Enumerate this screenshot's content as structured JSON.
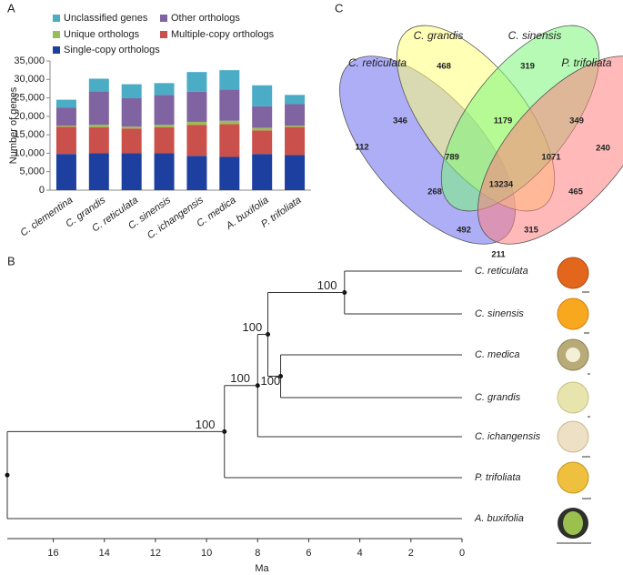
{
  "panel_labels": [
    "A",
    "B",
    "C"
  ],
  "chart_data": [
    {
      "type": "bar",
      "ylabel": "Number of genes",
      "categories": [
        "C. clementina",
        "C. grandis",
        "C. reticulata",
        "C. sinensis",
        "C. ichangensis",
        "C. medica",
        "A. buxifolia",
        "P. trifoliata"
      ],
      "series": [
        {
          "name": "Single-copy orthologs",
          "color": "#1c3fa0",
          "values": [
            9800,
            10000,
            10000,
            10000,
            9300,
            9000,
            9800,
            9500
          ]
        },
        {
          "name": "Multiple-copy orthologs",
          "color": "#c9504b",
          "values": [
            7400,
            7000,
            6700,
            7000,
            8400,
            8900,
            6400,
            7600
          ]
        },
        {
          "name": "Unique orthologs",
          "color": "#9bbb59",
          "values": [
            300,
            700,
            500,
            700,
            800,
            900,
            700,
            400
          ]
        },
        {
          "name": "Other orthologs",
          "color": "#8064a2",
          "values": [
            4900,
            9100,
            7700,
            8100,
            8200,
            8500,
            5800,
            5800
          ]
        },
        {
          "name": "Unclassified genes",
          "color": "#4bacc6",
          "values": [
            2100,
            3400,
            3800,
            3200,
            5300,
            5200,
            5700,
            2500
          ]
        }
      ],
      "ylim": [
        0,
        35000
      ],
      "yticks": [
        0,
        {
          "value": 5000,
          "label": "5,000"
        },
        {
          "value": 10000,
          "label": "10,000"
        },
        {
          "value": 15000,
          "label": "15,000"
        },
        {
          "value": 20000,
          "label": "20,000"
        },
        {
          "value": 25000,
          "label": "25,000"
        },
        {
          "value": 30000,
          "label": "30,000"
        },
        {
          "value": 35000,
          "label": "35,000"
        }
      ]
    },
    {
      "type": "tree",
      "xlabel": "Ma",
      "leaves": [
        "C. reticulata",
        "C. sinensis",
        "C. medica",
        "C. grandis",
        "C. ichangensis",
        "P. trifoliata",
        "A. buxifolia"
      ],
      "nodes": [
        {
          "age": 4.6,
          "label": "100"
        },
        {
          "age": 7.1,
          "label": "100"
        },
        {
          "age": 7.6,
          "label": "100"
        },
        {
          "age": 8.0,
          "label": "100"
        },
        {
          "age": 9.3,
          "label": "100"
        },
        {
          "age": 17.8
        }
      ],
      "xlim": [
        17.8,
        0
      ],
      "xticks": [
        16,
        14,
        12,
        10,
        8,
        6,
        4,
        2,
        0
      ]
    },
    {
      "type": "venn",
      "sets": [
        "C. reticulata",
        "C. grandis",
        "C. sinensis",
        "P. trifoliata"
      ],
      "set_colors": [
        "#6b6bf0",
        "#ffff7a",
        "#7af57a",
        "#ff7f7f"
      ],
      "values": [
        468,
        319,
        346,
        1179,
        349,
        112,
        240,
        789,
        1071,
        13234,
        268,
        465,
        492,
        315,
        211
      ]
    }
  ]
}
